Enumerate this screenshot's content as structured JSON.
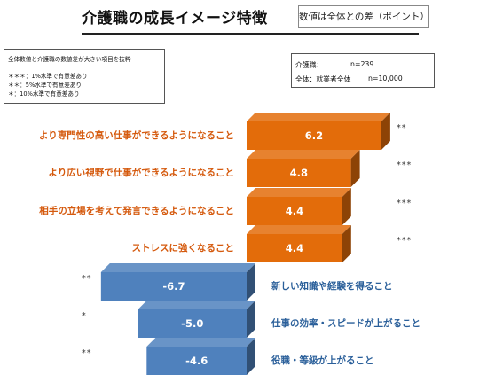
{
  "header": {
    "title": "介護職の成長イメージ特徴",
    "note": "数値は全体との差（ポイント）"
  },
  "legend": {
    "heading": "全体数値と介護職の数値差が大きい項目を抜粋",
    "lines": [
      "＊＊＊：1%水準で有意差あり",
      "＊＊：5%水準で有意差あり",
      "＊：10%水準で有意差あり"
    ]
  },
  "sample": {
    "row1_label": "介護職：",
    "row1_value": "n=239",
    "row2_label": "全体：就業者全体",
    "row2_value": "n=10,000"
  },
  "colors": {
    "positive": "#e36c0a",
    "negative": "#4f81bd"
  },
  "chart_data": {
    "type": "bar",
    "orientation": "horizontal",
    "categories": [
      "より専門性の高い仕事ができるようになること",
      "より広い視野で仕事ができるようになること",
      "相手の立場を考えて発言できるようになること",
      "ストレスに強くなること",
      "新しい知識や経験を得ること",
      "仕事の効率・スピードが上がること",
      "役職・等級が上がること"
    ],
    "values": [
      6.2,
      4.8,
      4.4,
      4.4,
      -6.7,
      -5.0,
      -4.6
    ],
    "value_labels": [
      "6.2",
      "4.8",
      "4.4",
      "4.4",
      "-6.7",
      "-5.0",
      "-4.6"
    ],
    "significance": [
      "**",
      "***",
      "***",
      "***",
      "**",
      "*",
      "**"
    ]
  }
}
